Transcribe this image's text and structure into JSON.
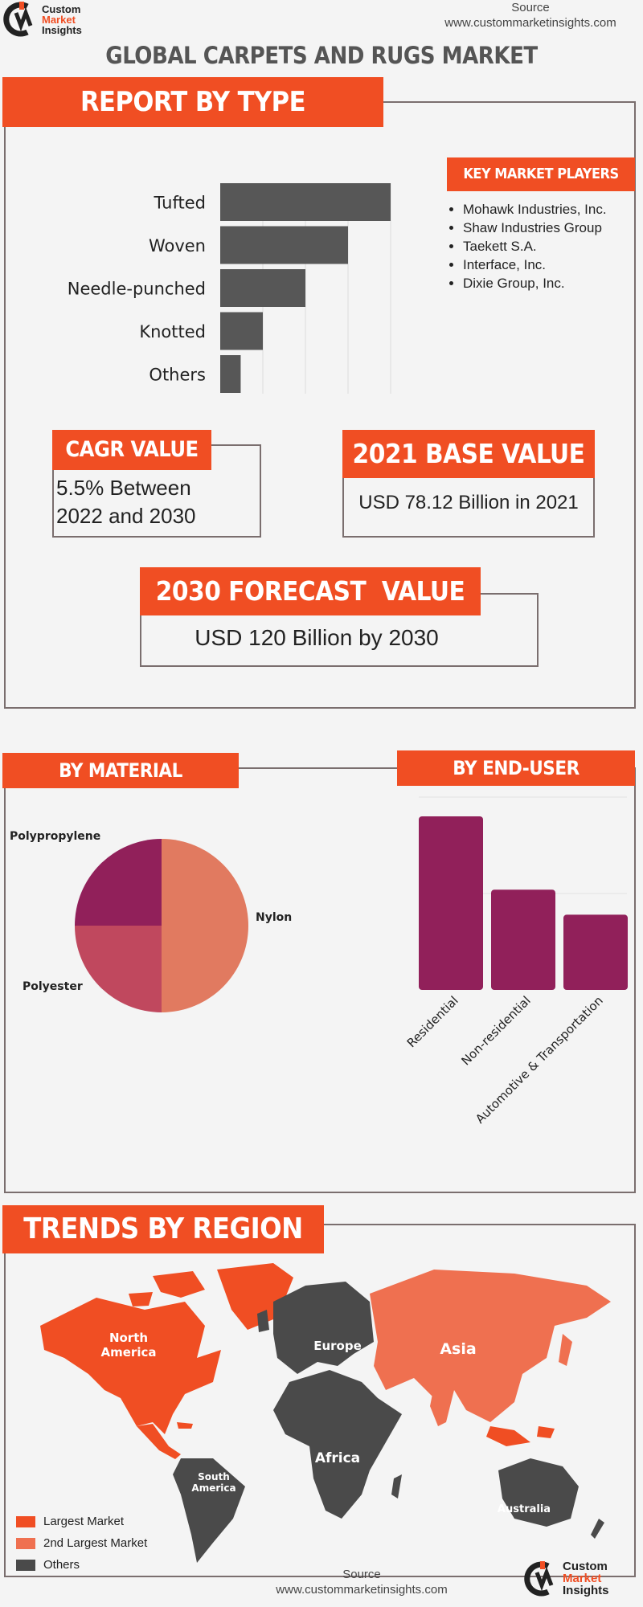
{
  "header": {
    "logo_line1": "Custom",
    "logo_line2": "Market",
    "logo_line3": "Insights",
    "source_label": "Source",
    "source_url": "www.custommarketinsights.com",
    "title": "GLOBAL CARPETS AND RUGS MARKET"
  },
  "report_by_type": {
    "heading": "REPORT BY TYPE"
  },
  "key_players": {
    "heading": "KEY MARKET PLAYERS",
    "items": [
      "Mohawk Industries, Inc.",
      "Shaw Industries Group",
      "Taekett S.A.",
      "Interface, Inc.",
      "Dixie Group, Inc."
    ]
  },
  "cagr": {
    "heading": "CAGR VALUE",
    "value": "5.5% Between 2022 and 2030"
  },
  "base": {
    "heading": "2021 BASE VALUE",
    "value": "USD 78.12 Billion in 2021"
  },
  "forecast": {
    "heading": "2030 FORECAST  VALUE",
    "value": "USD 120 Billion by 2030"
  },
  "by_material": {
    "heading": "BY MATERIAL"
  },
  "by_end_user": {
    "heading": "BY END-USER"
  },
  "trends": {
    "heading": "TRENDS BY REGION",
    "regions": {
      "north_america": "North America",
      "europe": "Europe",
      "asia": "Asia",
      "south_america": "South America",
      "africa": "Africa",
      "australia": "Australia"
    },
    "legend": [
      "Largest Market",
      "2nd Largest Market",
      "Others"
    ],
    "colors": {
      "largest": "#f04e23",
      "second": "#ef7050",
      "others": "#4a4a4a"
    }
  },
  "footer": {
    "source_label": "Source",
    "source_url": "www.custommarketinsights.com"
  },
  "chart_data": [
    {
      "type": "bar",
      "orientation": "horizontal",
      "categories": [
        "Tufted",
        "Woven",
        "Needle-punched",
        "Knotted",
        "Others"
      ],
      "values": [
        100,
        75,
        50,
        25,
        12
      ],
      "color": "#575757"
    },
    {
      "type": "pie",
      "categories": [
        "Nylon",
        "Polyester",
        "Polypropylene"
      ],
      "values": [
        50,
        25,
        25
      ],
      "colors": [
        "#e17a60",
        "#c0485e",
        "#91205a"
      ]
    },
    {
      "type": "bar",
      "categories": [
        "Residential",
        "Non-residential",
        "Automotive & Transportation"
      ],
      "values": [
        90,
        52,
        39
      ],
      "color": "#91205a"
    }
  ]
}
